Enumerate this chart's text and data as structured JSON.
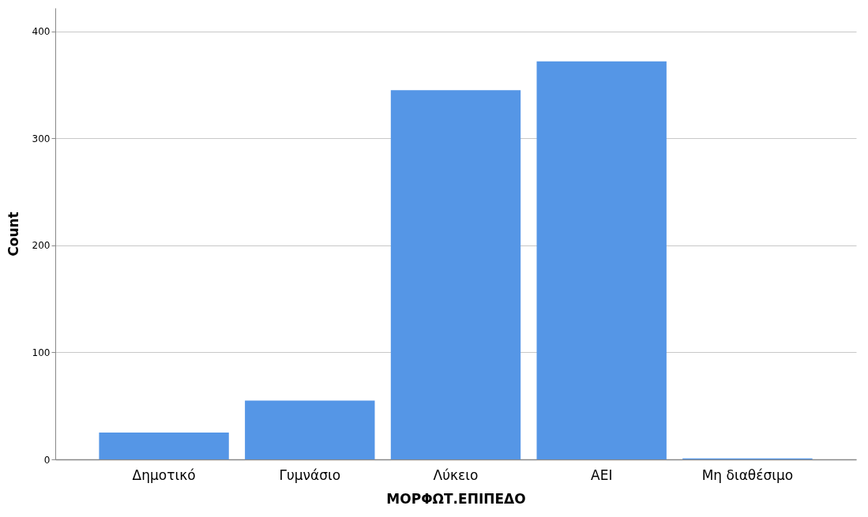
{
  "chart_data": {
    "type": "bar",
    "xlabel": "ΜΟΡΦΩΤ.ΕΠΙΠΕΔΟ",
    "ylabel": "Count",
    "categories": [
      "Δημοτικό",
      "Γυμνάσιο",
      "Λύκειο",
      "ΑΕΙ",
      "Μη διαθέσιμο"
    ],
    "values": [
      25,
      55,
      345,
      372,
      1
    ],
    "color": "#5596e6",
    "ylim": [
      0,
      422
    ],
    "yticks": [
      0,
      100,
      200,
      300,
      400
    ],
    "grid": "y"
  }
}
